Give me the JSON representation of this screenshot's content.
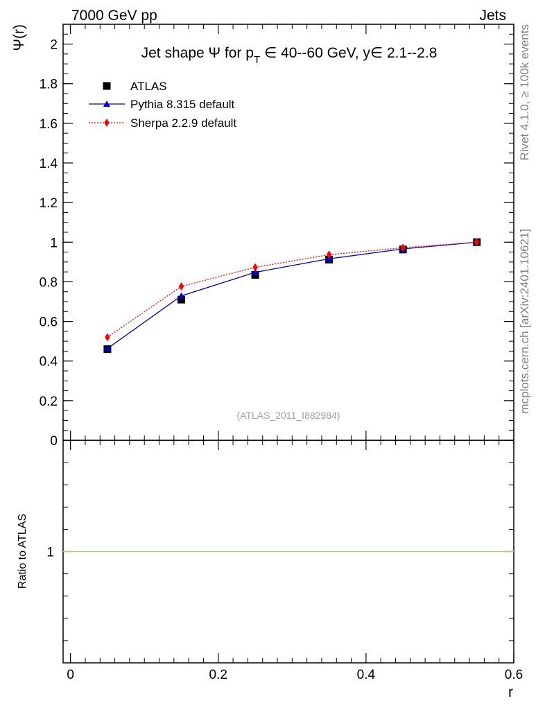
{
  "header": {
    "left": "7000 GeV pp",
    "right": "Jets"
  },
  "side_text": {
    "rivet": "Rivet 4.1.0, ≥ 100k events",
    "mcplots": "mcplots.cern.ch [arXiv:2401.10621]"
  },
  "chart_data": {
    "type": "line",
    "title_parts": {
      "prefix": "Jet shape Ψ for p",
      "subscript": "T",
      "suffix": " ∈ 40--60 GeV, y∈ 2.1--2.8"
    },
    "watermark": "(ATLAS_2011_I882984)",
    "ylabel": "Ψ(r)",
    "xlabel": "r",
    "ratio_ylabel": "Ratio to ATLAS",
    "xlim": [
      -0.01,
      0.6
    ],
    "ylim": [
      0,
      2.1
    ],
    "ratio_ylim": [
      0.5,
      1.5
    ],
    "x_ticks": [
      0,
      0.2,
      0.4,
      0.6
    ],
    "x_tick_labels": [
      "0",
      "0.2",
      "0.4",
      "0.6"
    ],
    "y_ticks": [
      0,
      0.2,
      0.4,
      0.6,
      0.8,
      1,
      1.2,
      1.4,
      1.6,
      1.8,
      2
    ],
    "y_tick_labels": [
      "0",
      "0.2",
      "0.4",
      "0.6",
      "0.8",
      "1",
      "1.2",
      "1.4",
      "1.6",
      "1.8",
      "2"
    ],
    "ratio_y_ticks": [
      1
    ],
    "ratio_y_tick_labels": [
      "1"
    ],
    "x": [
      0.05,
      0.15,
      0.25,
      0.35,
      0.45,
      0.55
    ],
    "series": [
      {
        "name": "ATLAS",
        "legend": "ATLAS",
        "color": "#000000",
        "marker": "square",
        "line": "none",
        "values": [
          0.46,
          0.71,
          0.835,
          0.912,
          0.963,
          1.0
        ]
      },
      {
        "name": "Pythia",
        "legend": "Pythia 8.315 default",
        "color": "#0000cc",
        "marker": "triangle",
        "line": "solid",
        "values": [
          0.463,
          0.729,
          0.848,
          0.916,
          0.966,
          1.0
        ]
      },
      {
        "name": "Sherpa",
        "legend": "Sherpa 2.2.9 default",
        "color": "#ff0000",
        "marker": "diamond",
        "line": "dotted",
        "values": [
          0.52,
          0.777,
          0.873,
          0.937,
          0.972,
          1.0
        ]
      }
    ],
    "ratio_reference": {
      "value": 1,
      "color": "#99dd66"
    }
  }
}
